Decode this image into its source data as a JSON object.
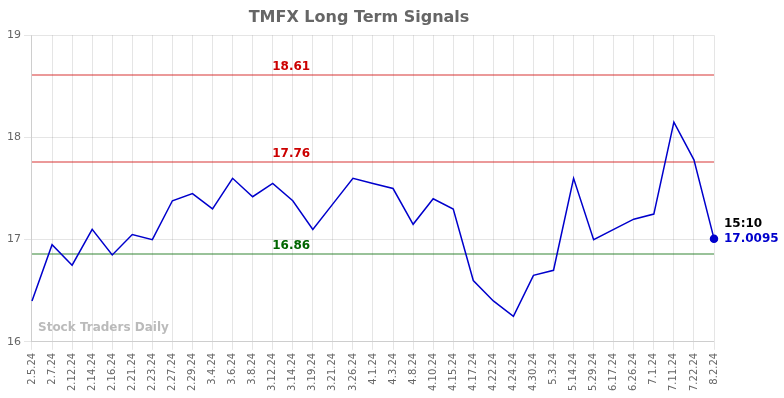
{
  "chart_data": {
    "type": "line",
    "title": "TMFX Long Term Signals",
    "categories": [
      "2.5.24",
      "2.7.24",
      "2.12.24",
      "2.14.24",
      "2.16.24",
      "2.21.24",
      "2.23.24",
      "2.27.24",
      "2.29.24",
      "3.4.24",
      "3.6.24",
      "3.8.24",
      "3.12.24",
      "3.14.24",
      "3.19.24",
      "3.21.24",
      "3.26.24",
      "4.1.24",
      "4.3.24",
      "4.8.24",
      "4.10.24",
      "4.15.24",
      "4.17.24",
      "4.22.24",
      "4.24.24",
      "4.30.24",
      "5.3.24",
      "5.14.24",
      "5.29.24",
      "6.17.24",
      "6.26.24",
      "7.1.24",
      "7.11.24",
      "7.22.24",
      "8.2.24"
    ],
    "values": [
      16.4,
      16.95,
      16.75,
      17.1,
      16.85,
      17.05,
      17.0,
      17.38,
      17.45,
      17.3,
      17.6,
      17.42,
      17.55,
      17.38,
      17.1,
      17.35,
      17.6,
      17.55,
      17.5,
      17.15,
      17.4,
      17.3,
      16.6,
      16.4,
      16.25,
      16.65,
      16.7,
      17.6,
      17.0,
      17.1,
      17.2,
      17.25,
      18.15,
      17.78,
      17.0095
    ],
    "color": "#0000cc",
    "ylim": [
      16,
      19
    ],
    "yticks": [
      16,
      17,
      18,
      19
    ],
    "grid": true,
    "hlines": [
      {
        "value": 16.86,
        "label": "16.86",
        "color": "#006600"
      },
      {
        "value": 17.76,
        "label": "17.76",
        "color": "#cc0000"
      },
      {
        "value": 18.61,
        "label": "18.61",
        "color": "#cc0000"
      }
    ],
    "annotations": [
      {
        "text": "15:10",
        "x": "8.2.24",
        "color": "#000000"
      },
      {
        "text": "17.0095",
        "x": "8.2.24",
        "color": "#0000cc"
      },
      {
        "text": "Stock Traders Daily",
        "color": "#bbbbbb"
      }
    ]
  }
}
